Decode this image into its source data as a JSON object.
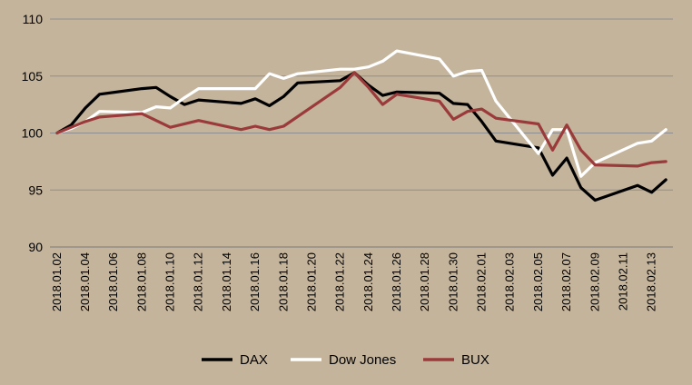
{
  "chart_data": {
    "type": "line",
    "title": "",
    "xlabel": "",
    "ylabel": "",
    "ylim": [
      90,
      110
    ],
    "yticks": [
      90,
      95,
      100,
      105,
      110
    ],
    "grid": "horizontal",
    "legend_position": "bottom",
    "x": [
      "2018.01.02",
      "2018.01.03",
      "2018.01.04",
      "2018.01.05",
      "2018.01.06",
      "2018.01.07",
      "2018.01.08",
      "2018.01.09",
      "2018.01.10",
      "2018.01.11",
      "2018.01.12",
      "2018.01.13",
      "2018.01.14",
      "2018.01.15",
      "2018.01.16",
      "2018.01.17",
      "2018.01.18",
      "2018.01.19",
      "2018.01.20",
      "2018.01.21",
      "2018.01.22",
      "2018.01.23",
      "2018.01.24",
      "2018.01.25",
      "2018.01.26",
      "2018.01.27",
      "2018.01.28",
      "2018.01.29",
      "2018.01.30",
      "2018.01.31",
      "2018.02.01",
      "2018.02.02",
      "2018.02.03",
      "2018.02.04",
      "2018.02.05",
      "2018.02.06",
      "2018.02.07",
      "2018.02.08",
      "2018.02.09",
      "2018.02.10",
      "2018.02.11",
      "2018.02.12",
      "2018.02.13",
      "2018.02.14"
    ],
    "x_tick_labels": [
      "2018.01.02",
      "2018.01.04",
      "2018.01.06",
      "2018.01.08",
      "2018.01.10",
      "2018.01.12",
      "2018.01.14",
      "2018.01.16",
      "2018.01.18",
      "2018.01.20",
      "2018.01.22",
      "2018.01.24",
      "2018.01.26",
      "2018.01.28",
      "2018.01.30",
      "2018.02.01",
      "2018.02.03",
      "2018.02.05",
      "2018.02.07",
      "2018.02.09",
      "2018.02.11",
      "2018.02.13"
    ],
    "series": [
      {
        "name": "DAX",
        "color": "#000000",
        "x": [
          "2018.01.02",
          "2018.01.03",
          "2018.01.04",
          "2018.01.05",
          "2018.01.08",
          "2018.01.09",
          "2018.01.10",
          "2018.01.11",
          "2018.01.12",
          "2018.01.15",
          "2018.01.16",
          "2018.01.17",
          "2018.01.18",
          "2018.01.19",
          "2018.01.22",
          "2018.01.23",
          "2018.01.24",
          "2018.01.25",
          "2018.01.26",
          "2018.01.29",
          "2018.01.30",
          "2018.01.31",
          "2018.02.01",
          "2018.02.02",
          "2018.02.05",
          "2018.02.06",
          "2018.02.07",
          "2018.02.08",
          "2018.02.09",
          "2018.02.12",
          "2018.02.13",
          "2018.02.14"
        ],
        "values": [
          100.0,
          100.7,
          102.2,
          103.4,
          103.9,
          104.0,
          103.2,
          102.5,
          102.9,
          102.6,
          103.0,
          102.4,
          103.2,
          104.4,
          104.6,
          105.3,
          104.2,
          103.3,
          103.6,
          103.5,
          102.6,
          102.5,
          101.0,
          99.3,
          98.7,
          96.3,
          97.8,
          95.2,
          94.1,
          95.4,
          94.8,
          95.9
        ]
      },
      {
        "name": "Dow Jones",
        "color": "#ffffff",
        "x": [
          "2018.01.02",
          "2018.01.03",
          "2018.01.04",
          "2018.01.05",
          "2018.01.08",
          "2018.01.09",
          "2018.01.10",
          "2018.01.11",
          "2018.01.12",
          "2018.01.16",
          "2018.01.17",
          "2018.01.18",
          "2018.01.19",
          "2018.01.22",
          "2018.01.23",
          "2018.01.24",
          "2018.01.25",
          "2018.01.26",
          "2018.01.29",
          "2018.01.30",
          "2018.01.31",
          "2018.02.01",
          "2018.02.02",
          "2018.02.05",
          "2018.02.06",
          "2018.02.07",
          "2018.02.08",
          "2018.02.09",
          "2018.02.12",
          "2018.02.13",
          "2018.02.14"
        ],
        "values": [
          100.0,
          100.4,
          101.0,
          101.9,
          101.8,
          102.3,
          102.2,
          103.1,
          103.9,
          103.9,
          105.2,
          104.8,
          105.2,
          105.6,
          105.6,
          105.8,
          106.3,
          107.2,
          106.5,
          105.0,
          105.4,
          105.5,
          102.8,
          98.2,
          100.3,
          100.3,
          96.2,
          97.4,
          99.1,
          99.3,
          100.3
        ]
      },
      {
        "name": "BUX",
        "color": "#9b3a3a",
        "x": [
          "2018.01.02",
          "2018.01.03",
          "2018.01.04",
          "2018.01.05",
          "2018.01.08",
          "2018.01.09",
          "2018.01.10",
          "2018.01.12",
          "2018.01.15",
          "2018.01.16",
          "2018.01.17",
          "2018.01.18",
          "2018.01.22",
          "2018.01.23",
          "2018.01.24",
          "2018.01.25",
          "2018.01.26",
          "2018.01.29",
          "2018.01.30",
          "2018.01.31",
          "2018.02.01",
          "2018.02.02",
          "2018.02.05",
          "2018.02.06",
          "2018.02.07",
          "2018.02.08",
          "2018.02.09",
          "2018.02.12",
          "2018.02.13",
          "2018.02.14"
        ],
        "values": [
          100.0,
          100.5,
          101.0,
          101.4,
          101.7,
          101.1,
          100.5,
          101.1,
          100.3,
          100.6,
          100.3,
          100.6,
          104.0,
          105.3,
          104.0,
          102.5,
          103.4,
          102.8,
          101.2,
          101.9,
          102.1,
          101.3,
          100.8,
          98.5,
          100.7,
          98.5,
          97.2,
          97.1,
          97.4,
          97.5
        ]
      }
    ]
  }
}
